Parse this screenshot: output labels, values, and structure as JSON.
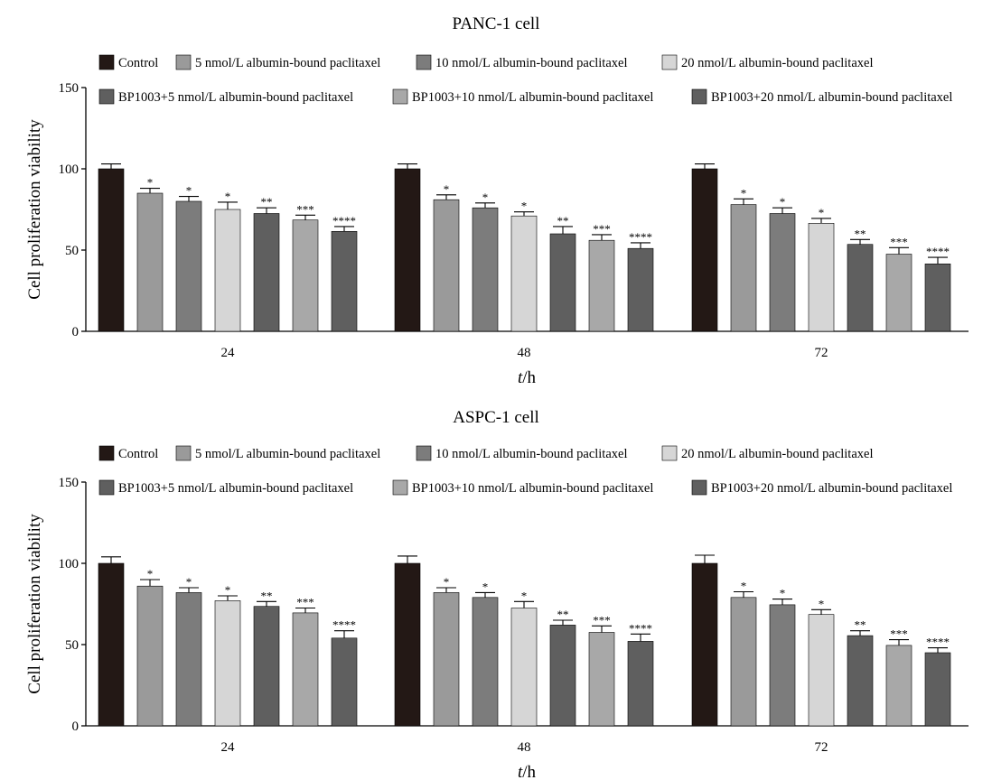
{
  "chart_data": [
    {
      "type": "bar",
      "title": "PANC-1 cell",
      "xlabel_italic": "t",
      "xlabel_unit": "/h",
      "ylabel": "Cell proliferation viability",
      "ylim": [
        0,
        150
      ],
      "yticks": [
        "0",
        "50",
        "100",
        "150"
      ],
      "legend_position": "top",
      "categories": [
        "24",
        "48",
        "72"
      ],
      "series": [
        {
          "name": "Control",
          "color": "#231815",
          "values": [
            100,
            100,
            100
          ],
          "errors": [
            3,
            3,
            3
          ],
          "sig": [
            "",
            "",
            ""
          ]
        },
        {
          "name": "5 nmol/L albumin-bound paclitaxel",
          "color": "#9a9a9a",
          "values": [
            85,
            81,
            78
          ],
          "errors": [
            3,
            3,
            3.5
          ],
          "sig": [
            "*",
            "*",
            "*"
          ]
        },
        {
          "name": "10 nmol/L albumin-bound paclitaxel",
          "color": "#7c7c7c",
          "values": [
            80,
            76,
            72.5
          ],
          "errors": [
            3,
            3,
            3.5
          ],
          "sig": [
            "*",
            "*",
            "*"
          ]
        },
        {
          "name": "20 nmol/L albumin-bound paclitaxel",
          "color": "#d6d6d6",
          "values": [
            75,
            71,
            66.5
          ],
          "errors": [
            4.5,
            2.5,
            3
          ],
          "sig": [
            "*",
            "*",
            "*"
          ]
        },
        {
          "name": "BP1003+5 nmol/L albumin-bound paclitaxel",
          "color": "#5f5f5f",
          "values": [
            72.5,
            60,
            53.5
          ],
          "errors": [
            3.5,
            4.5,
            3
          ],
          "sig": [
            "**",
            "**",
            "**"
          ]
        },
        {
          "name": "BP1003+10 nmol/L albumin-bound paclitaxel",
          "color": "#a8a8a8",
          "values": [
            68.5,
            56,
            47.5
          ],
          "errors": [
            3,
            3.5,
            4
          ],
          "sig": [
            "***",
            "***",
            "***"
          ]
        },
        {
          "name": "BP1003+20 nmol/L albumin-bound paclitaxel",
          "color": "#5f5f5f",
          "values": [
            61.5,
            51,
            41.5
          ],
          "errors": [
            3,
            3.5,
            4
          ],
          "sig": [
            "****",
            "****",
            "****"
          ]
        }
      ]
    },
    {
      "type": "bar",
      "title": "ASPC-1 cell",
      "xlabel_italic": "t",
      "xlabel_unit": "/h",
      "ylabel": "Cell proliferation viability",
      "ylim": [
        0,
        150
      ],
      "yticks": [
        "0",
        "50",
        "100",
        "150"
      ],
      "legend_position": "top",
      "categories": [
        "24",
        "48",
        "72"
      ],
      "series": [
        {
          "name": "Control",
          "color": "#231815",
          "values": [
            100,
            100,
            100
          ],
          "errors": [
            4,
            4.5,
            5
          ],
          "sig": [
            "",
            "",
            ""
          ]
        },
        {
          "name": "5 nmol/L albumin-bound paclitaxel",
          "color": "#9a9a9a",
          "values": [
            86,
            82,
            79
          ],
          "errors": [
            4,
            3,
            3.5
          ],
          "sig": [
            "*",
            "*",
            "*"
          ]
        },
        {
          "name": "10 nmol/L albumin-bound paclitaxel",
          "color": "#7c7c7c",
          "values": [
            82,
            79,
            74.5
          ],
          "errors": [
            3,
            3,
            3.5
          ],
          "sig": [
            "*",
            "*",
            "*"
          ]
        },
        {
          "name": "20 nmol/L albumin-bound paclitaxel",
          "color": "#d6d6d6",
          "values": [
            77,
            72.5,
            68.5
          ],
          "errors": [
            3,
            4,
            3
          ],
          "sig": [
            "*",
            "*",
            "*"
          ]
        },
        {
          "name": "BP1003+5 nmol/L albumin-bound paclitaxel",
          "color": "#5f5f5f",
          "values": [
            73.5,
            62,
            55.5
          ],
          "errors": [
            3,
            3,
            3
          ],
          "sig": [
            "**",
            "**",
            "**"
          ]
        },
        {
          "name": "BP1003+10 nmol/L albumin-bound paclitaxel",
          "color": "#a8a8a8",
          "values": [
            69.5,
            57.5,
            49.5
          ],
          "errors": [
            3,
            4,
            3.5
          ],
          "sig": [
            "***",
            "***",
            "***"
          ]
        },
        {
          "name": "BP1003+20 nmol/L albumin-bound paclitaxel",
          "color": "#5f5f5f",
          "values": [
            54,
            52,
            45
          ],
          "errors": [
            4.5,
            4.5,
            3
          ],
          "sig": [
            "****",
            "****",
            "****"
          ]
        }
      ]
    }
  ]
}
